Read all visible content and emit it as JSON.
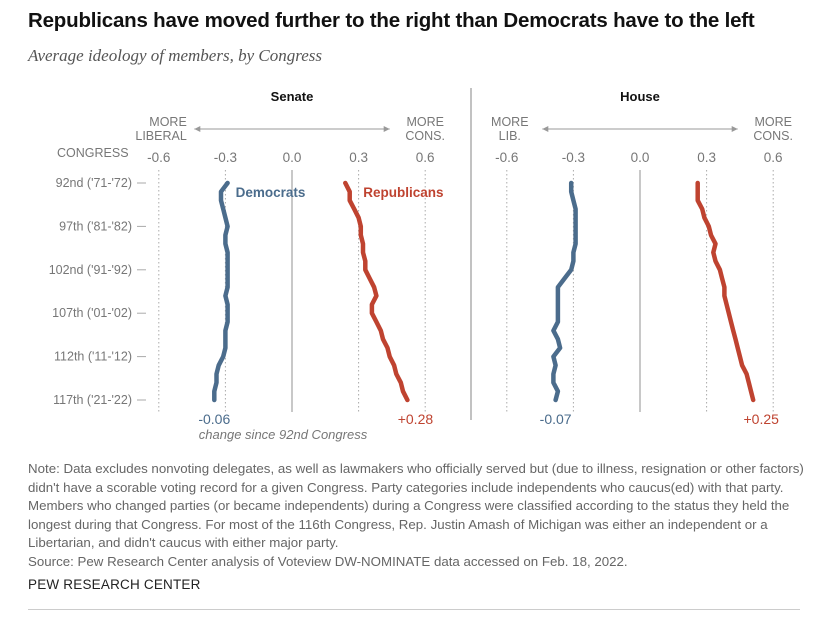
{
  "title": "Republicans have moved further to the right than Democrats have to the left",
  "subtitle": "Average ideology of members, by Congress",
  "chart_data": {
    "type": "line",
    "y_axis_label": "CONGRESS",
    "congresses": [
      92,
      93,
      94,
      95,
      96,
      97,
      98,
      99,
      100,
      101,
      102,
      103,
      104,
      105,
      106,
      107,
      108,
      109,
      110,
      111,
      112,
      113,
      114,
      115,
      116,
      117
    ],
    "y_tick_labels": [
      "92nd ('71-'72)",
      "97th ('81-'82)",
      "102nd ('91-'92)",
      "107th ('01-'02)",
      "112th ('11-'12)",
      "117th ('21-'22)"
    ],
    "y_tick_congresses": [
      92,
      97,
      102,
      107,
      112,
      117
    ],
    "x_ticks": [
      -0.6,
      -0.3,
      0.0,
      0.3,
      0.6
    ],
    "x_tick_labels": [
      "-0.6",
      "-0.3",
      "0.0",
      "0.3",
      "0.6"
    ],
    "xlim": [
      -0.6,
      0.6
    ],
    "change_caption": "change since 92nd Congress",
    "colors": {
      "Democrats": "#4b6c8c",
      "Republicans": "#bf4330"
    },
    "panels": [
      {
        "title": "Senate",
        "left_label": [
          "MORE",
          "LIBERAL"
        ],
        "right_label": [
          "MORE",
          "CONS."
        ],
        "series": [
          {
            "name": "Democrats",
            "change": "-0.06",
            "values": [
              -0.29,
              -0.32,
              -0.32,
              -0.31,
              -0.3,
              -0.29,
              -0.3,
              -0.3,
              -0.29,
              -0.29,
              -0.29,
              -0.29,
              -0.29,
              -0.3,
              -0.29,
              -0.29,
              -0.29,
              -0.3,
              -0.3,
              -0.3,
              -0.31,
              -0.33,
              -0.34,
              -0.34,
              -0.35,
              -0.35
            ]
          },
          {
            "name": "Republicans",
            "change": "+0.28",
            "values": [
              0.24,
              0.26,
              0.26,
              0.28,
              0.3,
              0.31,
              0.31,
              0.32,
              0.32,
              0.33,
              0.33,
              0.35,
              0.37,
              0.38,
              0.36,
              0.36,
              0.38,
              0.4,
              0.41,
              0.43,
              0.44,
              0.46,
              0.47,
              0.49,
              0.5,
              0.52
            ]
          }
        ]
      },
      {
        "title": "House",
        "left_label": [
          "MORE",
          "LIB."
        ],
        "right_label": [
          "MORE",
          "CONS."
        ],
        "series": [
          {
            "name": "Democrats",
            "change": "-0.07",
            "values": [
              -0.31,
              -0.31,
              -0.3,
              -0.29,
              -0.29,
              -0.29,
              -0.29,
              -0.29,
              -0.3,
              -0.3,
              -0.31,
              -0.34,
              -0.37,
              -0.37,
              -0.37,
              -0.37,
              -0.37,
              -0.39,
              -0.37,
              -0.36,
              -0.39,
              -0.38,
              -0.39,
              -0.39,
              -0.37,
              -0.38
            ]
          },
          {
            "name": "Republicans",
            "change": "+0.25",
            "values": [
              0.26,
              0.26,
              0.26,
              0.28,
              0.29,
              0.31,
              0.32,
              0.34,
              0.33,
              0.34,
              0.36,
              0.37,
              0.38,
              0.38,
              0.39,
              0.4,
              0.41,
              0.42,
              0.43,
              0.44,
              0.45,
              0.46,
              0.48,
              0.49,
              0.5,
              0.51
            ]
          }
        ]
      }
    ]
  },
  "note": "Note: Data excludes nonvoting delegates, as well as lawmakers who officially served but (due to illness, resignation or other factors) didn't have a scorable voting record for a given Congress. Party categories include independents who caucus(ed) with that party. Members who changed parties (or became independents) during a Congress were classified according to the status they held the longest during that Congress. For most of the 116th Congress, Rep. Justin Amash of Michigan was either an independent or a Libertarian, and didn't caucus with either major party.",
  "source": "Source: Pew Research Center analysis of Voteview DW-NOMINATE data accessed on Feb. 18, 2022.",
  "brand": "PEW RESEARCH CENTER"
}
